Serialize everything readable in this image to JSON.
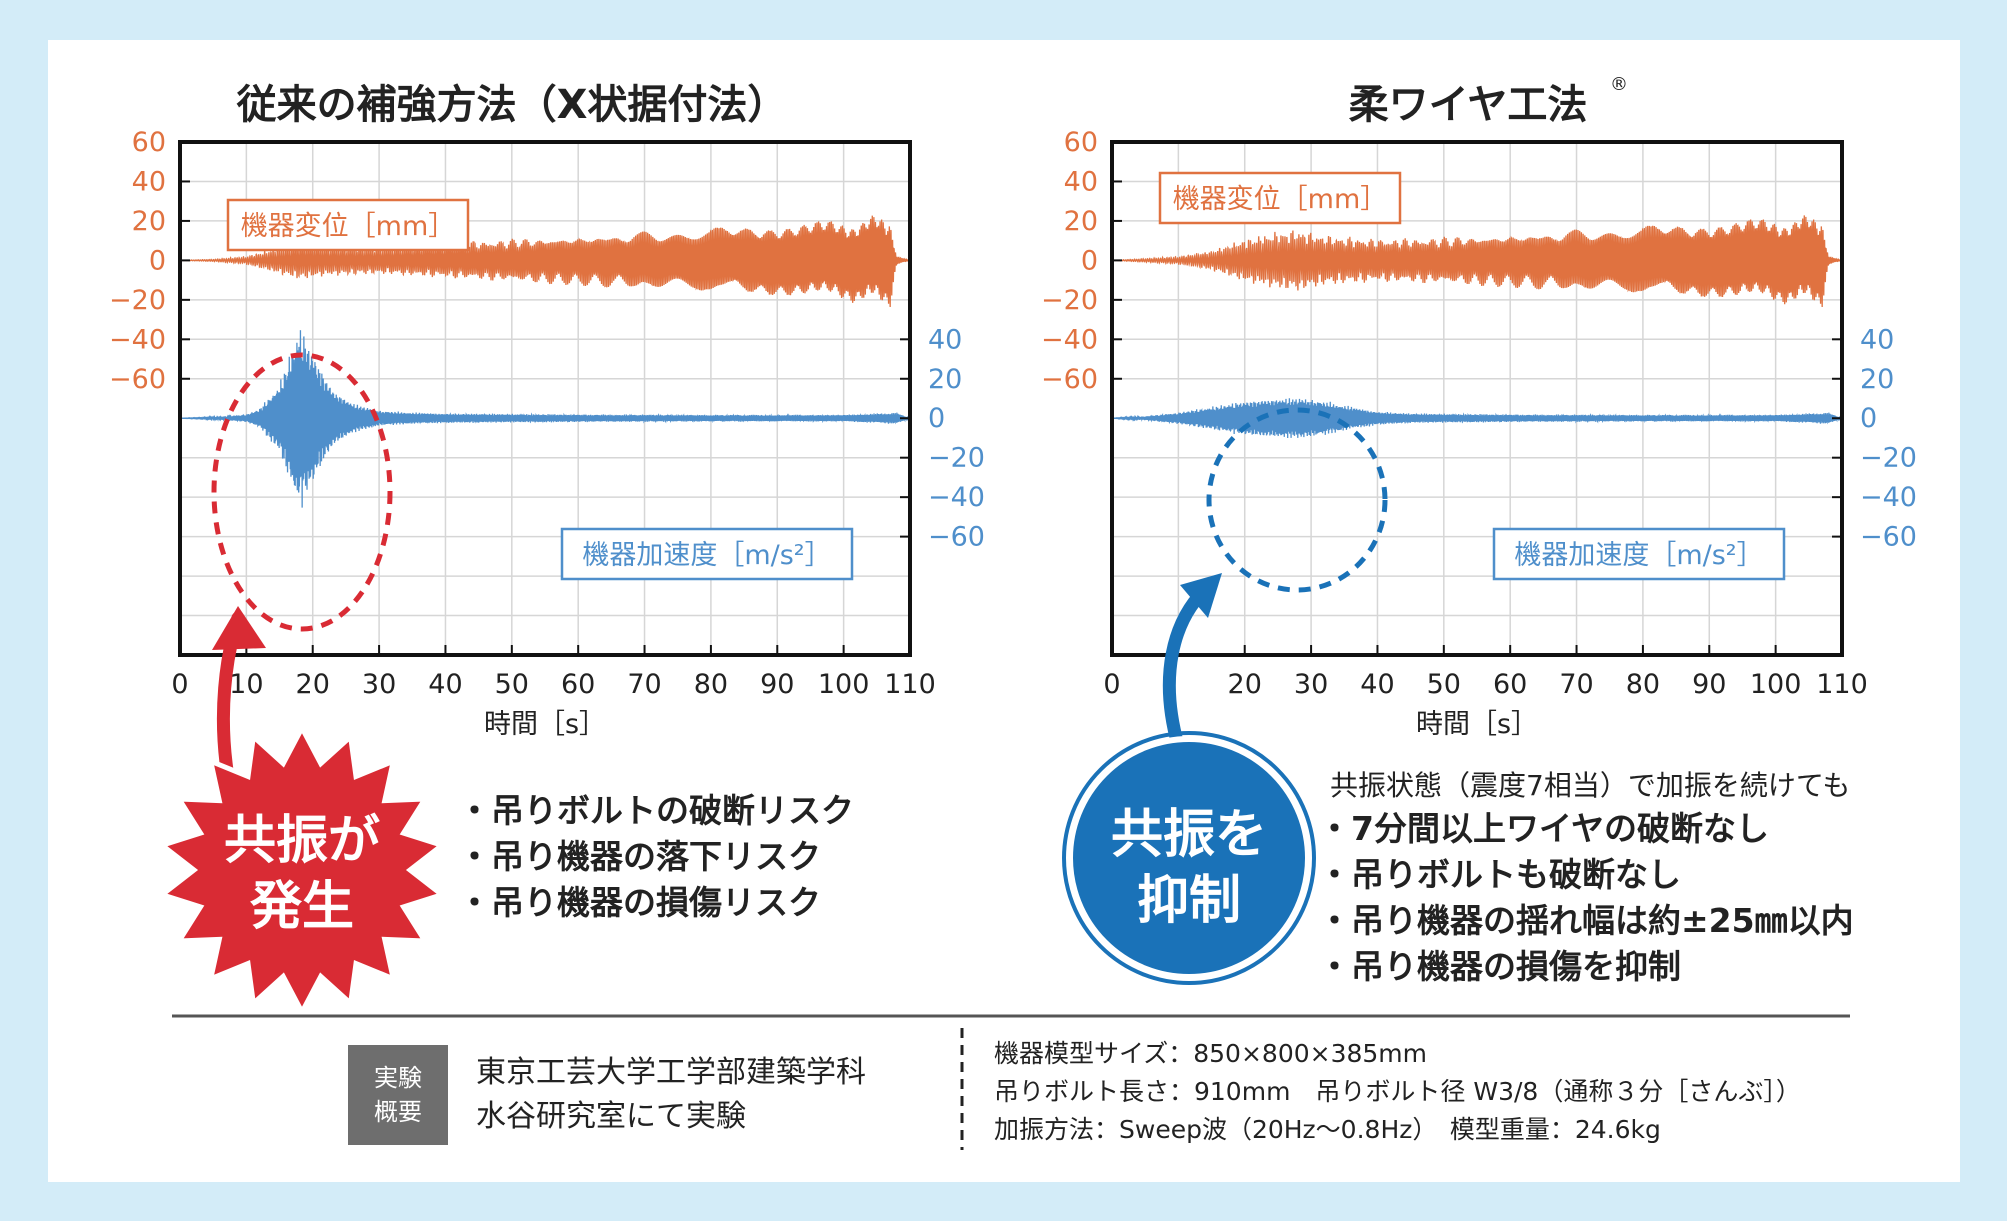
{
  "chart_data": [
    {
      "type": "line",
      "title": "従来の補強方法（X状据付法）",
      "xlabel": "時間［s］",
      "x_ticks": [
        "0",
        "10",
        "20",
        "30",
        "40",
        "50",
        "60",
        "70",
        "80",
        "90",
        "100",
        "110"
      ],
      "xlim": [
        0,
        110
      ],
      "left_ticks": [
        "60",
        "40",
        "20",
        "0",
        "−20",
        "−40",
        "−60"
      ],
      "right_ticks": [
        "40",
        "20",
        "0",
        "−20",
        "−40",
        "−60"
      ],
      "grid": true,
      "series": [
        {
          "name": "機器変位［mm］",
          "axis": "left",
          "color": "#e07240",
          "envelope": {
            "x": [
              0,
              5,
              10,
              15,
              18,
              22,
              30,
              40,
              50,
              60,
              70,
              80,
              90,
              100,
              105,
              107,
              108,
              110
            ],
            "amp": [
              0,
              0.6,
              2,
              7,
              10,
              8,
              7,
              9,
              11,
              13,
              15,
              17,
              19,
              21,
              23,
              24,
              2,
              0
            ]
          }
        },
        {
          "name": "機器加速度［m/s²］",
          "axis": "right",
          "color": "#4f8fcb",
          "envelope": {
            "x": [
              0,
              5,
              10,
              12,
              15,
              17,
              18,
              19,
              21,
              23,
              26,
              30,
              35,
              40,
              60,
              80,
              100,
              108,
              110
            ],
            "amp": [
              0,
              0.5,
              2,
              5,
              18,
              38,
              48,
              42,
              28,
              15,
              8,
              4,
              3,
              2.5,
              2,
              1.8,
              1.8,
              3,
              0
            ]
          }
        }
      ]
    },
    {
      "type": "line",
      "title": "柔ワイヤ工法",
      "title_mark": "®",
      "xlabel": "時間［s］",
      "x_ticks": [
        "0",
        "20",
        "30",
        "40",
        "50",
        "60",
        "70",
        "80",
        "90",
        "100",
        "110"
      ],
      "xlim": [
        0,
        110
      ],
      "left_ticks": [
        "60",
        "40",
        "20",
        "0",
        "−20",
        "−40",
        "−60"
      ],
      "right_ticks": [
        "40",
        "20",
        "0",
        "−20",
        "−40",
        "−60"
      ],
      "grid": true,
      "series": [
        {
          "name": "機器変位［mm］",
          "axis": "left",
          "color": "#e07240",
          "envelope": {
            "x": [
              0,
              10,
              15,
              20,
              25,
              28,
              32,
              36,
              40,
              50,
              60,
              70,
              80,
              90,
              100,
              105,
              107,
              108,
              110
            ],
            "amp": [
              0,
              2,
              5,
              11,
              15,
              16,
              13,
              12,
              11,
              12,
              14,
              16,
              18,
              20,
              22,
              23,
              24,
              2,
              0
            ]
          }
        },
        {
          "name": "機器加速度［m/s²］",
          "axis": "right",
          "color": "#4f8fcb",
          "envelope": {
            "x": [
              0,
              5,
              10,
              15,
              20,
              25,
              28,
              32,
              36,
              40,
              45,
              60,
              80,
              100,
              108,
              110
            ],
            "amp": [
              0,
              1,
              3,
              6,
              9,
              10.5,
              11,
              9,
              6,
              3.5,
              2.5,
              2,
              1.8,
              1.8,
              3,
              0
            ]
          }
        }
      ]
    }
  ],
  "left_panel": {
    "badge": [
      "共振が",
      "発生"
    ],
    "bullets": [
      "・吊りボルトの破断リスク",
      "・吊り機器の落下リスク",
      "・吊り機器の損傷リスク"
    ]
  },
  "right_panel": {
    "badge": [
      "共振を",
      "抑制"
    ],
    "intro": "共振状態（震度7相当）で加振を続けても",
    "bullets": [
      "・7分間以上ワイヤの破断なし",
      "・吊りボルトも破断なし",
      "・吊り機器の揺れ幅は約±25㎜以内",
      "・吊り機器の損傷を抑制"
    ]
  },
  "footer": {
    "tag": [
      "実験",
      "概要"
    ],
    "lab": [
      "東京工芸大学工学部建築学科",
      "水谷研究室にて実験"
    ],
    "specs": [
      "機器模型サイズ：850×800×385mm",
      "吊りボルト長さ：910mm　吊りボルト径 W3/8（通称３分［さんぶ］）",
      "加振方法：Sweep波（20Hz〜0.8Hz）　模型重量：24.6kg"
    ]
  },
  "colors": {
    "orange": "#e07240",
    "blue": "#4f8fcb",
    "red": "#d92b34",
    "dark_blue": "#1a72b8",
    "bg": "#d3ecf8"
  }
}
